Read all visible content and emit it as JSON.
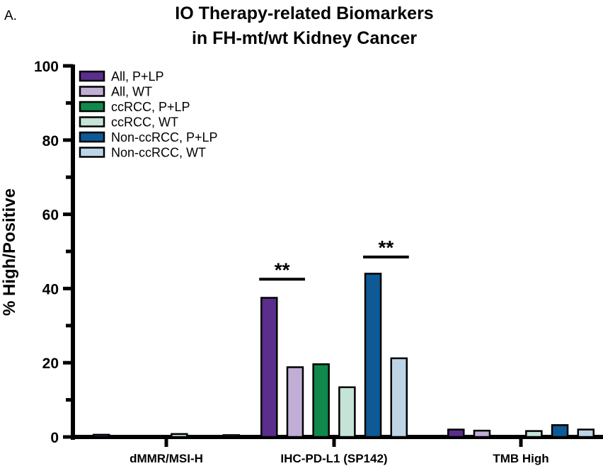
{
  "panel_label": "A.",
  "chart_data": {
    "type": "bar",
    "title_lines": [
      "IO Therapy-related Biomarkers",
      "in FH-mt/wt Kidney Cancer"
    ],
    "xlabel": "",
    "ylabel": "% High/Positive",
    "ylim": [
      0,
      100
    ],
    "yticks": [
      0,
      20,
      40,
      60,
      80,
      100
    ],
    "yminor_step": 10,
    "categories": [
      "dMMR/MSI-H",
      "IHC-PD-L1 (SP142)",
      "TMB High"
    ],
    "series": [
      {
        "name": "All, P+LP",
        "color": "#5b2d8c",
        "values": [
          0.6,
          37.5,
          2.0
        ]
      },
      {
        "name": "All, WT",
        "color": "#c0aed6",
        "values": [
          0,
          18.8,
          1.7
        ]
      },
      {
        "name": "ccRCC, P+LP",
        "color": "#0f8a4c",
        "values": [
          0,
          19.6,
          0
        ]
      },
      {
        "name": "ccRCC, WT",
        "color": "#c5e3d6",
        "values": [
          0.8,
          13.4,
          1.6
        ]
      },
      {
        "name": "Non-ccRCC, P+LP",
        "color": "#0d5a96",
        "values": [
          0,
          44.0,
          3.2
        ]
      },
      {
        "name": "Non-ccRCC, WT",
        "color": "#bdd4e6",
        "values": [
          0.5,
          21.2,
          2.0
        ]
      }
    ],
    "legend_position": "top-left",
    "grid": false,
    "annotations": [
      {
        "text": "**",
        "category": "IHC-PD-L1 (SP142)",
        "between_series": [
          0,
          1
        ],
        "at_value": 42.5
      },
      {
        "text": "**",
        "category": "IHC-PD-L1 (SP142)",
        "between_series": [
          4,
          5
        ],
        "at_value": 48.5
      }
    ]
  }
}
